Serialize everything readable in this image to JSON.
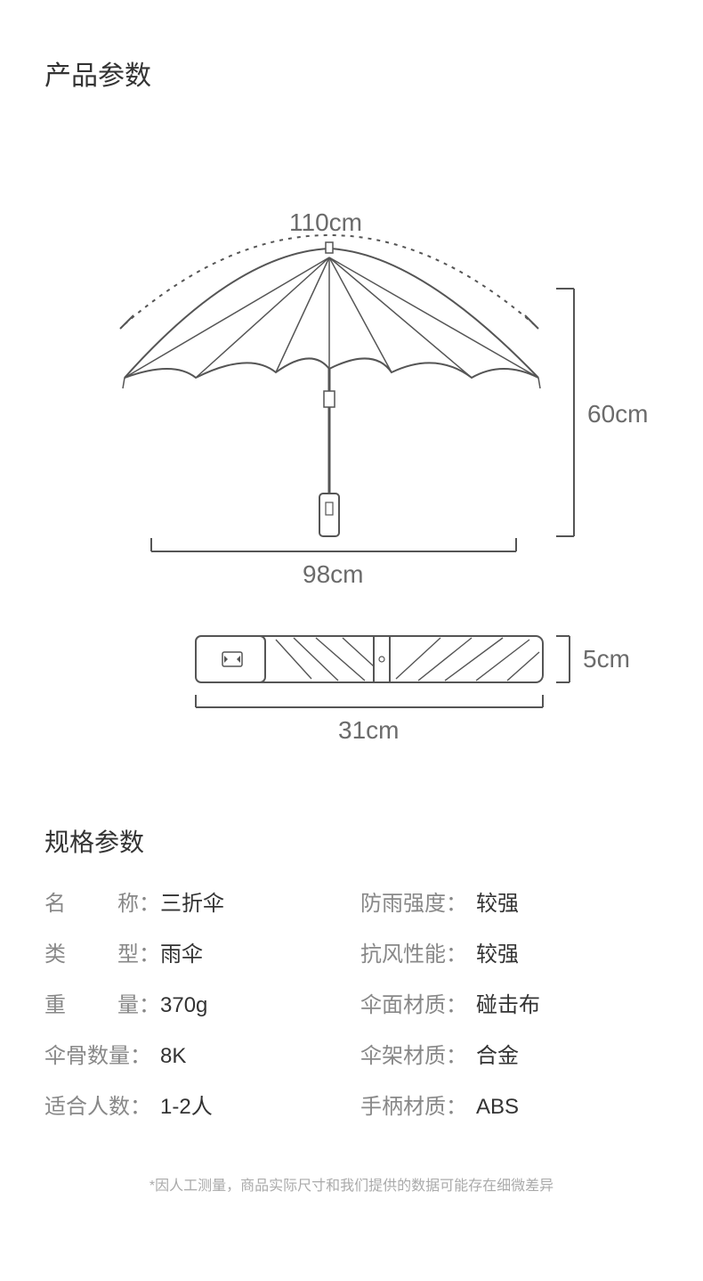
{
  "title": "产品参数",
  "diagram": {
    "stroke_color": "#555555",
    "stroke_width": 2,
    "label_color": "#6b6b6b",
    "label_fontsize": 28,
    "open": {
      "arc_span_label": "110cm",
      "height_label": "60cm",
      "width_label": "98cm"
    },
    "folded": {
      "length_label": "31cm",
      "thickness_label": "5cm"
    }
  },
  "spec_title": "规格参数",
  "specs_left": [
    {
      "label": "名称",
      "justify": true,
      "colon": "：",
      "value": "三折伞"
    },
    {
      "label": "类型",
      "justify": true,
      "colon": "：",
      "value": "雨伞"
    },
    {
      "label": "重量",
      "justify": true,
      "colon": "：",
      "value": "370g"
    },
    {
      "label": "伞骨数量",
      "justify": false,
      "colon": "：",
      "value": "8K"
    },
    {
      "label": "适合人数",
      "justify": false,
      "colon": "：",
      "value": "1-2人"
    }
  ],
  "specs_right": [
    {
      "label": "防雨强度",
      "justify": false,
      "colon": "：",
      "value": "较强"
    },
    {
      "label": "抗风性能",
      "justify": false,
      "colon": "：",
      "value": "较强"
    },
    {
      "label": "伞面材质",
      "justify": false,
      "colon": "：",
      "value": "碰击布"
    },
    {
      "label": "伞架材质",
      "justify": false,
      "colon": "：",
      "value": "合金"
    },
    {
      "label": "手柄材质",
      "justify": false,
      "colon": "：",
      "value": "ABS"
    }
  ],
  "footnote": "*因人工测量，商品实际尺寸和我们提供的数据可能存在细微差异"
}
